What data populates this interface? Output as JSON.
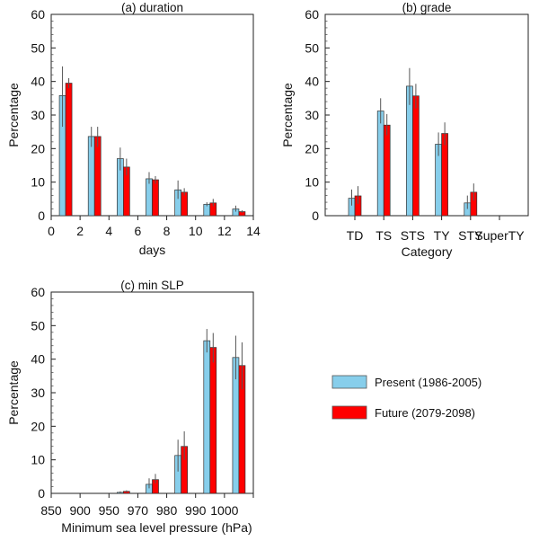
{
  "chart_data": [
    {
      "type": "bar",
      "title": "(a) duration",
      "xlabel": "days",
      "ylabel": "Percentage",
      "ylim": [
        0,
        60
      ],
      "yticks": [
        0,
        10,
        20,
        30,
        40,
        50,
        60
      ],
      "xlim": [
        0,
        14
      ],
      "xticks": [
        0,
        2,
        4,
        6,
        8,
        10,
        12,
        14
      ],
      "categories": [
        1,
        3,
        5,
        7,
        9,
        11,
        13
      ],
      "series": [
        {
          "name": "Present (1986-2005)",
          "color": "#87ceeb",
          "values": [
            35.8,
            23.6,
            17.0,
            11.0,
            7.7,
            3.4,
            2.0
          ],
          "err_low": [
            26.5,
            20.5,
            13.5,
            9.5,
            5.0,
            2.8,
            1.2
          ],
          "err_high": [
            44.5,
            26.5,
            20.3,
            13.0,
            10.5,
            4.0,
            3.0
          ]
        },
        {
          "name": "Future (2079-2098)",
          "color": "#ff0000",
          "values": [
            39.5,
            23.6,
            14.5,
            10.7,
            7.0,
            3.8,
            1.2
          ],
          "err_low": [
            38.0,
            20.5,
            12.0,
            9.5,
            6.0,
            2.8,
            0.8
          ],
          "err_high": [
            41.0,
            26.5,
            17.0,
            11.8,
            8.2,
            5.0,
            1.6
          ]
        }
      ],
      "grid": false
    },
    {
      "type": "bar",
      "title": "(b) grade",
      "xlabel": "Category",
      "ylabel": "Percentage",
      "ylim": [
        0,
        60
      ],
      "yticks": [
        0,
        10,
        20,
        30,
        40,
        50,
        60
      ],
      "categories": [
        "TD",
        "TS",
        "STS",
        "TY",
        "STY",
        "SuperTY"
      ],
      "series": [
        {
          "name": "Present (1986-2005)",
          "color": "#87ceeb",
          "values": [
            5.2,
            31.2,
            38.6,
            21.3,
            3.8,
            0
          ],
          "err_low": [
            3.0,
            27.5,
            33.0,
            17.8,
            2.0,
            0
          ],
          "err_high": [
            7.8,
            35.0,
            44.0,
            24.8,
            6.0,
            0
          ]
        },
        {
          "name": "Future (2079-2098)",
          "color": "#ff0000",
          "values": [
            5.9,
            27.0,
            35.7,
            24.5,
            7.0,
            0
          ],
          "err_low": [
            3.5,
            24.0,
            32.0,
            21.0,
            4.5,
            0
          ],
          "err_high": [
            8.8,
            30.3,
            39.3,
            27.8,
            9.6,
            0
          ]
        }
      ],
      "grid": false
    },
    {
      "type": "bar",
      "title": "(c) min SLP",
      "xlabel": "Minimum sea level pressure (hPa)",
      "ylabel": "Percentage",
      "ylim": [
        0,
        60
      ],
      "yticks": [
        0,
        10,
        20,
        30,
        40,
        50,
        60
      ],
      "xtick_labels": [
        "850",
        "900",
        "950",
        "970",
        "980",
        "990",
        "1000"
      ],
      "categories": [
        "850-900",
        "900-950",
        "950-970",
        "970-980",
        "980-990",
        "990-1000",
        ">1000"
      ],
      "series": [
        {
          "name": "Present (1986-2005)",
          "color": "#87ceeb",
          "values": [
            0,
            0,
            0.3,
            2.7,
            11.3,
            45.5,
            40.5
          ],
          "err_low": [
            0,
            0,
            0.1,
            1.5,
            6.5,
            42.0,
            34.0
          ],
          "err_high": [
            0,
            0,
            0.6,
            4.5,
            16.0,
            49.0,
            47.0
          ]
        },
        {
          "name": "Future (2079-2098)",
          "color": "#ff0000",
          "values": [
            0,
            0,
            0.6,
            4.1,
            14.0,
            43.5,
            38.1
          ],
          "err_low": [
            0,
            0,
            0.3,
            3.0,
            10.0,
            39.0,
            31.0
          ],
          "err_high": [
            0,
            0,
            0.9,
            5.8,
            18.5,
            47.8,
            45.0
          ]
        }
      ],
      "grid": false
    }
  ],
  "legend": {
    "placement": "bottom-right",
    "items": [
      {
        "label": "Present (1986-2005)",
        "color": "#87ceeb"
      },
      {
        "label": "Future (2079-2098)",
        "color": "#ff0000"
      }
    ]
  }
}
